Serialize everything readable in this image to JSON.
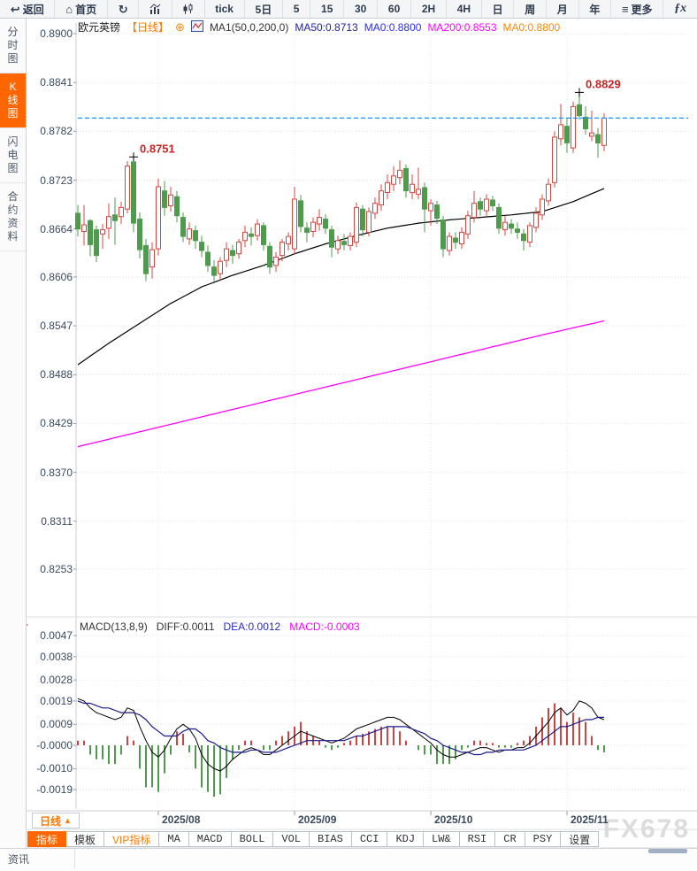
{
  "toolbar": {
    "items": [
      {
        "name": "back",
        "label": "返回",
        "icon": "back-arrow"
      },
      {
        "name": "home",
        "label": "首页",
        "icon": "home"
      },
      {
        "name": "refresh",
        "label": "",
        "icon": "refresh"
      },
      {
        "name": "bar-chart-view",
        "label": "",
        "icon": "bar-chart"
      },
      {
        "name": "candle-view",
        "label": "",
        "icon": "candlestick"
      },
      {
        "name": "tick",
        "label": "tick",
        "icon": ""
      },
      {
        "name": "5day",
        "label": "5日",
        "icon": ""
      },
      {
        "name": "5min",
        "label": "5",
        "icon": ""
      },
      {
        "name": "15min",
        "label": "15",
        "icon": ""
      },
      {
        "name": "30min",
        "label": "30",
        "icon": ""
      },
      {
        "name": "60min",
        "label": "60",
        "icon": ""
      },
      {
        "name": "2hour",
        "label": "2H",
        "icon": ""
      },
      {
        "name": "4hour",
        "label": "4H",
        "icon": ""
      },
      {
        "name": "daily",
        "label": "日",
        "icon": ""
      },
      {
        "name": "weekly",
        "label": "周",
        "icon": ""
      },
      {
        "name": "monthly",
        "label": "月",
        "icon": ""
      },
      {
        "name": "yearly",
        "label": "年",
        "icon": ""
      },
      {
        "name": "more",
        "label": "更多",
        "icon": "menu"
      },
      {
        "name": "fx",
        "label": "fx",
        "icon": "fx"
      }
    ]
  },
  "sidebar": {
    "items": [
      {
        "name": "time-chart",
        "label": "分时图",
        "selected": false
      },
      {
        "name": "kline-chart",
        "label": "K线图",
        "selected": true
      },
      {
        "name": "lightning-chart",
        "label": "闪电图",
        "selected": false
      },
      {
        "name": "contract-info",
        "label": "合约资料",
        "selected": false
      }
    ]
  },
  "chart_header": {
    "symbol": "欧元英镑",
    "period": "【日线】",
    "ma_settings": "MA1(50,0,200,0)",
    "ma50": "MA50:0.8713",
    "ma0_blue": "MA0:0.8800",
    "ma200": "MA200:0.8553",
    "ma0_orange": "MA0:0.8800"
  },
  "macd_header": {
    "title": "MACD(13,8,9)",
    "diff": "DIFF:0.0011",
    "dea": "DEA:0.0012",
    "macd": "MACD:-0.0003"
  },
  "price_axis_labels": [
    "0.8900",
    "0.8841",
    "0.8782",
    "0.8723",
    "0.8664",
    "0.8606",
    "0.8547",
    "0.8488",
    "0.8429",
    "0.8370",
    "0.8311",
    "0.8253"
  ],
  "macd_axis_labels": [
    "0.0047",
    "0.0038",
    "0.0028",
    "0.0019",
    "0.0009",
    "-0.0000",
    "-0.0010",
    "-0.0019"
  ],
  "x_axis_labels": [
    "2025/08",
    "2025/09",
    "2025/10",
    "2025/11"
  ],
  "annotations": {
    "aug_high": "0.8751",
    "nov_high": "0.8829"
  },
  "bottom": {
    "period_label": "日线",
    "tabs": [
      {
        "label": "指标",
        "selected": true,
        "vip": false,
        "cn": true
      },
      {
        "label": "模板",
        "selected": false,
        "vip": false,
        "cn": true
      },
      {
        "label": "VIP指标",
        "selected": false,
        "vip": true,
        "cn": true
      },
      {
        "label": "MA",
        "selected": false,
        "vip": false,
        "cn": false
      },
      {
        "label": "MACD",
        "selected": false,
        "vip": false,
        "cn": false
      },
      {
        "label": "BOLL",
        "selected": false,
        "vip": false,
        "cn": false
      },
      {
        "label": "VOL",
        "selected": false,
        "vip": false,
        "cn": false
      },
      {
        "label": "BIAS",
        "selected": false,
        "vip": false,
        "cn": false
      },
      {
        "label": "CCI",
        "selected": false,
        "vip": false,
        "cn": false
      },
      {
        "label": "KDJ",
        "selected": false,
        "vip": false,
        "cn": false
      },
      {
        "label": "LW&",
        "selected": false,
        "vip": false,
        "cn": false
      },
      {
        "label": "RSI",
        "selected": false,
        "vip": false,
        "cn": false
      },
      {
        "label": "CR",
        "selected": false,
        "vip": false,
        "cn": false
      },
      {
        "label": "PSY",
        "selected": false,
        "vip": false,
        "cn": false
      },
      {
        "label": "设置",
        "selected": false,
        "vip": false,
        "cn": true
      }
    ],
    "news_tab": "资讯",
    "watermark": "FX678"
  },
  "colors": {
    "up_candle": "#d9443f",
    "down_candle": "#4e9b4e",
    "ma50_line": "#000000",
    "ma200_line": "#ff00ff",
    "diff_line": "#000000",
    "dea_line": "#1a1a8c",
    "hist_pos": "#cc4444",
    "hist_neg": "#4e9b4e",
    "price_dash_line": "#1e90ff",
    "accent_orange": "#ff6600",
    "annotation_red": "#cc2222",
    "grid": "#e8e0e0"
  },
  "chart_data": {
    "type": "candlestick",
    "title": "欧元英镑 日线 (EUR/GBP daily)",
    "price_axis_ticks": [
      0.89,
      0.8841,
      0.8782,
      0.8723,
      0.8664,
      0.8606,
      0.8547,
      0.8488,
      0.8429,
      0.837,
      0.8311,
      0.8253
    ],
    "x_axis_months": [
      {
        "label": "2025/08",
        "index": 13
      },
      {
        "label": "2025/09",
        "index": 35
      },
      {
        "label": "2025/10",
        "index": 57
      },
      {
        "label": "2025/11",
        "index": 79
      }
    ],
    "current_price": 0.8798,
    "high_annotations": [
      {
        "index": 9,
        "price": 0.8751,
        "label": "0.8751"
      },
      {
        "index": 81,
        "price": 0.8829,
        "label": "0.8829"
      }
    ],
    "candles": [
      [
        0.8683,
        0.8693,
        0.8655,
        0.8664
      ],
      [
        0.8661,
        0.8693,
        0.8644,
        0.8669
      ],
      [
        0.8674,
        0.8676,
        0.8631,
        0.8645
      ],
      [
        0.8663,
        0.8668,
        0.8624,
        0.8632
      ],
      [
        0.8658,
        0.867,
        0.864,
        0.8663
      ],
      [
        0.8665,
        0.8695,
        0.8652,
        0.8679
      ],
      [
        0.8681,
        0.8702,
        0.8645,
        0.8674
      ],
      [
        0.8679,
        0.8697,
        0.867,
        0.869
      ],
      [
        0.8688,
        0.8746,
        0.8683,
        0.874
      ],
      [
        0.8745,
        0.8751,
        0.866,
        0.8671
      ],
      [
        0.8676,
        0.8684,
        0.8628,
        0.8639
      ],
      [
        0.8644,
        0.8652,
        0.8601,
        0.861
      ],
      [
        0.8618,
        0.8648,
        0.8604,
        0.8639
      ],
      [
        0.864,
        0.8725,
        0.8632,
        0.8715
      ],
      [
        0.871,
        0.8722,
        0.868,
        0.869
      ],
      [
        0.8692,
        0.8715,
        0.8685,
        0.8705
      ],
      [
        0.8703,
        0.871,
        0.8672,
        0.868
      ],
      [
        0.8678,
        0.8684,
        0.8648,
        0.8655
      ],
      [
        0.8652,
        0.8672,
        0.8645,
        0.8664
      ],
      [
        0.8662,
        0.8668,
        0.864,
        0.865
      ],
      [
        0.8648,
        0.8656,
        0.863,
        0.8638
      ],
      [
        0.8636,
        0.8644,
        0.8612,
        0.862
      ],
      [
        0.8618,
        0.8626,
        0.8601,
        0.8608
      ],
      [
        0.861,
        0.863,
        0.8602,
        0.8625
      ],
      [
        0.8626,
        0.8648,
        0.8618,
        0.864
      ],
      [
        0.8638,
        0.8645,
        0.8622,
        0.8632
      ],
      [
        0.8634,
        0.8652,
        0.8628,
        0.8648
      ],
      [
        0.865,
        0.8668,
        0.8642,
        0.866
      ],
      [
        0.8658,
        0.8666,
        0.8644,
        0.8655
      ],
      [
        0.8656,
        0.8676,
        0.865,
        0.867
      ],
      [
        0.8668,
        0.8672,
        0.8638,
        0.8645
      ],
      [
        0.8643,
        0.8648,
        0.861,
        0.8618
      ],
      [
        0.862,
        0.8636,
        0.8612,
        0.863
      ],
      [
        0.8632,
        0.8652,
        0.8625,
        0.8648
      ],
      [
        0.8646,
        0.866,
        0.8638,
        0.8655
      ],
      [
        0.864,
        0.8715,
        0.8633,
        0.87
      ],
      [
        0.8698,
        0.8705,
        0.866,
        0.8667
      ],
      [
        0.8665,
        0.8672,
        0.8648,
        0.866
      ],
      [
        0.8661,
        0.8678,
        0.8654,
        0.8672
      ],
      [
        0.867,
        0.8688,
        0.8662,
        0.8678
      ],
      [
        0.8676,
        0.8682,
        0.8658,
        0.8665
      ],
      [
        0.8663,
        0.8668,
        0.863,
        0.8642
      ],
      [
        0.864,
        0.8656,
        0.8634,
        0.865
      ],
      [
        0.8649,
        0.8658,
        0.8638,
        0.8645
      ],
      [
        0.8644,
        0.866,
        0.8638,
        0.8655
      ],
      [
        0.8648,
        0.8696,
        0.8642,
        0.869
      ],
      [
        0.8688,
        0.8693,
        0.8655,
        0.8663
      ],
      [
        0.866,
        0.869,
        0.8655,
        0.8685
      ],
      [
        0.8683,
        0.8702,
        0.8676,
        0.8695
      ],
      [
        0.8693,
        0.8718,
        0.8686,
        0.871
      ],
      [
        0.8708,
        0.873,
        0.87,
        0.872
      ],
      [
        0.8718,
        0.874,
        0.871,
        0.8728
      ],
      [
        0.8726,
        0.8747,
        0.8718,
        0.8735
      ],
      [
        0.8737,
        0.8742,
        0.8702,
        0.871
      ],
      [
        0.8708,
        0.873,
        0.87,
        0.8718
      ],
      [
        0.8706,
        0.8738,
        0.87,
        0.8712
      ],
      [
        0.8714,
        0.872,
        0.866,
        0.8688
      ],
      [
        0.8686,
        0.87,
        0.8668,
        0.8695
      ],
      [
        0.8693,
        0.8698,
        0.867,
        0.8677
      ],
      [
        0.8675,
        0.868,
        0.863,
        0.864
      ],
      [
        0.8638,
        0.866,
        0.8632,
        0.8655
      ],
      [
        0.8653,
        0.866,
        0.864,
        0.8648
      ],
      [
        0.8646,
        0.8666,
        0.864,
        0.866
      ],
      [
        0.8658,
        0.8686,
        0.8652,
        0.868
      ],
      [
        0.8678,
        0.871,
        0.8672,
        0.8695
      ],
      [
        0.8697,
        0.8702,
        0.868,
        0.8688
      ],
      [
        0.8686,
        0.8706,
        0.868,
        0.87
      ],
      [
        0.8699,
        0.8704,
        0.8686,
        0.8692
      ],
      [
        0.869,
        0.8695,
        0.8658,
        0.8665
      ],
      [
        0.8663,
        0.868,
        0.8656,
        0.8672
      ],
      [
        0.867,
        0.8676,
        0.8658,
        0.8665
      ],
      [
        0.8664,
        0.8672,
        0.8652,
        0.866
      ],
      [
        0.8658,
        0.8664,
        0.8638,
        0.865
      ],
      [
        0.8648,
        0.8672,
        0.8642,
        0.8668
      ],
      [
        0.8666,
        0.869,
        0.866,
        0.8683
      ],
      [
        0.8681,
        0.8706,
        0.8675,
        0.87
      ],
      [
        0.8698,
        0.8725,
        0.8692,
        0.8718
      ],
      [
        0.872,
        0.8782,
        0.8714,
        0.8775
      ],
      [
        0.8773,
        0.8815,
        0.8765,
        0.879
      ],
      [
        0.8788,
        0.8798,
        0.8756,
        0.8768
      ],
      [
        0.8762,
        0.8818,
        0.8756,
        0.8812
      ],
      [
        0.8814,
        0.8829,
        0.8796,
        0.8801
      ],
      [
        0.8799,
        0.8812,
        0.8778,
        0.8785
      ],
      [
        0.8776,
        0.8807,
        0.877,
        0.878
      ],
      [
        0.8778,
        0.8786,
        0.875,
        0.8768
      ],
      [
        0.8765,
        0.8804,
        0.8758,
        0.8798
      ]
    ],
    "ma50_points": [
      [
        0,
        0.85
      ],
      [
        5,
        0.8526
      ],
      [
        10,
        0.855
      ],
      [
        15,
        0.8574
      ],
      [
        20,
        0.8594
      ],
      [
        25,
        0.8608
      ],
      [
        30,
        0.862
      ],
      [
        35,
        0.8634
      ],
      [
        40,
        0.8646
      ],
      [
        45,
        0.8656
      ],
      [
        50,
        0.8665
      ],
      [
        55,
        0.8671
      ],
      [
        60,
        0.8675
      ],
      [
        65,
        0.8678
      ],
      [
        70,
        0.8681
      ],
      [
        75,
        0.8685
      ],
      [
        80,
        0.8697
      ],
      [
        85,
        0.8713
      ]
    ],
    "ma200_points": [
      [
        0,
        0.8401
      ],
      [
        20,
        0.8437
      ],
      [
        40,
        0.8473
      ],
      [
        60,
        0.8509
      ],
      [
        75,
        0.8536
      ],
      [
        85,
        0.8553
      ]
    ],
    "macd": {
      "params": "13,8,9",
      "axis_ticks": [
        0.0047,
        0.0038,
        0.0028,
        0.0019,
        0.0009,
        0.0,
        -0.001,
        -0.0019
      ],
      "diff": [
        0.002,
        0.0019,
        0.0016,
        0.0014,
        0.0013,
        0.0012,
        0.0011,
        0.0012,
        0.0016,
        0.0015,
        0.0008,
        0.0002,
        -0.0003,
        -0.0005,
        -0.0002,
        0.0003,
        0.0007,
        0.0009,
        0.0007,
        0.0003,
        -0.0004,
        -0.0008,
        -0.001,
        -0.0011,
        -0.0009,
        -0.0006,
        -0.0004,
        -0.0002,
        -0.0001,
        -0.0002,
        -0.0004,
        -0.0004,
        -0.0002,
        0.0,
        0.0002,
        0.0004,
        0.0006,
        0.0005,
        0.0004,
        0.0003,
        0.0002,
        0.0001,
        0.0002,
        0.0003,
        0.0005,
        0.0007,
        0.0008,
        0.0009,
        0.001,
        0.0011,
        0.0012,
        0.0012,
        0.0011,
        0.0009,
        0.0007,
        0.0005,
        0.0003,
        0.0001,
        -0.0002,
        -0.0004,
        -0.0005,
        -0.0005,
        -0.0004,
        -0.0003,
        -0.0002,
        -0.0001,
        -0.0001,
        -0.0002,
        -0.0003,
        -0.0002,
        -0.0002,
        -0.0001,
        -0.0001,
        0.0001,
        0.0004,
        0.0007,
        0.001,
        0.0014,
        0.0016,
        0.0013,
        0.0015,
        0.0019,
        0.0018,
        0.0016,
        0.0012,
        0.0011
      ],
      "dea": [
        0.0019,
        0.0018,
        0.0018,
        0.0017,
        0.0016,
        0.0016,
        0.0015,
        0.0014,
        0.0014,
        0.0014,
        0.0013,
        0.0011,
        0.0008,
        0.0006,
        0.0004,
        0.0004,
        0.0004,
        0.0006,
        0.0007,
        0.0007,
        0.0005,
        0.0002,
        0.0001,
        -0.0001,
        -0.0002,
        -0.0003,
        -0.0003,
        -0.0003,
        -0.0002,
        -0.0002,
        -0.0003,
        -0.0003,
        -0.0003,
        -0.0002,
        -0.0001,
        0.0,
        0.0001,
        0.0002,
        0.0002,
        0.0002,
        0.0002,
        0.0002,
        0.0002,
        0.0002,
        0.0003,
        0.0004,
        0.0004,
        0.0005,
        0.0006,
        0.0007,
        0.0008,
        0.0008,
        0.0008,
        0.0008,
        0.0007,
        0.0006,
        0.0005,
        0.0003,
        0.0002,
        0.0,
        -0.0001,
        -0.0002,
        -0.0003,
        -0.0003,
        -0.0004,
        -0.0004,
        -0.0003,
        -0.0003,
        -0.0002,
        -0.0002,
        -0.0002,
        -0.0002,
        -0.0002,
        -0.0001,
        0.0,
        0.0002,
        0.0004,
        0.0006,
        0.0008,
        0.0008,
        0.0009,
        0.001,
        0.0011,
        0.0011,
        0.0012,
        0.0012
      ],
      "hist": [
        0.0002,
        0.0002,
        -0.0004,
        -0.0006,
        -0.0006,
        -0.0008,
        -0.0008,
        -0.0004,
        0.0004,
        0.0002,
        -0.001,
        -0.0018,
        -0.0018,
        -0.002,
        -0.0012,
        -0.0004,
        0.0006,
        0.0005,
        -0.0003,
        -0.001,
        -0.0018,
        -0.002,
        -0.0022,
        -0.0021,
        -0.0014,
        -0.0006,
        -0.0002,
        0.0002,
        0.0002,
        0.0,
        -0.0002,
        -0.0002,
        0.0002,
        0.0004,
        0.0006,
        0.0008,
        0.001,
        0.0006,
        0.0004,
        0.0002,
        -0.0001,
        -0.0002,
        -0.0001,
        0.0001,
        0.0002,
        0.0004,
        0.0005,
        0.0006,
        0.0007,
        0.0008,
        0.0008,
        0.0008,
        0.0006,
        0.0002,
        0.0,
        -0.0002,
        -0.0004,
        -0.0004,
        -0.0008,
        -0.0008,
        -0.0008,
        -0.0006,
        -0.0002,
        -0.0001,
        0.0002,
        0.0002,
        0.0001,
        0.0001,
        -0.0001,
        -0.0001,
        -0.0001,
        0.0001,
        0.0002,
        0.0004,
        0.0008,
        0.0012,
        0.0016,
        0.0018,
        0.0016,
        0.001,
        0.0014,
        0.0012,
        0.001,
        0.0004,
        -0.0002,
        -0.0003
      ]
    }
  }
}
